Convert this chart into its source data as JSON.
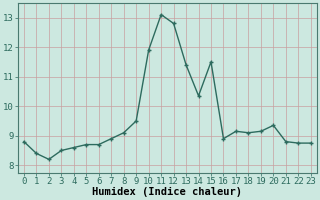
{
  "x": [
    0,
    1,
    2,
    3,
    4,
    5,
    6,
    7,
    8,
    9,
    10,
    11,
    12,
    13,
    14,
    15,
    16,
    17,
    18,
    19,
    20,
    21,
    22,
    23
  ],
  "y": [
    8.8,
    8.4,
    8.2,
    8.5,
    8.6,
    8.7,
    8.7,
    8.9,
    9.1,
    9.5,
    11.9,
    13.1,
    12.8,
    11.4,
    10.35,
    11.5,
    8.9,
    9.15,
    9.1,
    9.15,
    9.35,
    8.8,
    8.75,
    8.75
  ],
  "line_color": "#2d6b5e",
  "marker": "+",
  "marker_size": 3.5,
  "line_width": 1.0,
  "xlabel": "Humidex (Indice chaleur)",
  "xlabel_fontsize": 7.5,
  "xlim": [
    -0.5,
    23.5
  ],
  "ylim": [
    7.75,
    13.5
  ],
  "yticks": [
    8,
    9,
    10,
    11,
    12,
    13
  ],
  "xticks": [
    0,
    1,
    2,
    3,
    4,
    5,
    6,
    7,
    8,
    9,
    10,
    11,
    12,
    13,
    14,
    15,
    16,
    17,
    18,
    19,
    20,
    21,
    22,
    23
  ],
  "grid_color_major": "#c8a0a0",
  "grid_color_minor": "#c8a0a0",
  "bg_color": "#cce8e0",
  "fig_bg_color": "#cce8e0",
  "tick_fontsize": 6.5,
  "spine_color": "#4a7a70"
}
